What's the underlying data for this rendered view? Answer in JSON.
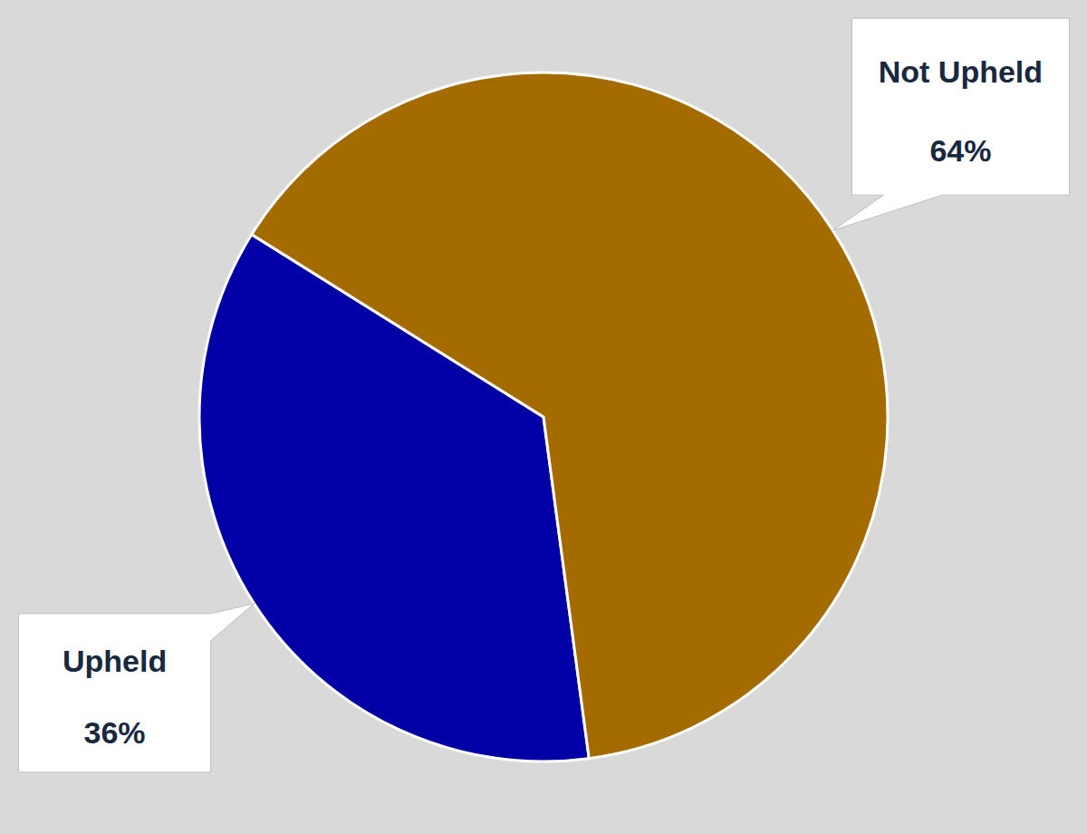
{
  "chart_data": {
    "type": "pie",
    "categories": [
      "Upheld",
      "Not Upheld"
    ],
    "values": [
      36,
      64
    ],
    "value_labels": [
      "36%",
      "64%"
    ],
    "colors": [
      "#0000a6",
      "#a36b00"
    ],
    "data_labels": true
  }
}
